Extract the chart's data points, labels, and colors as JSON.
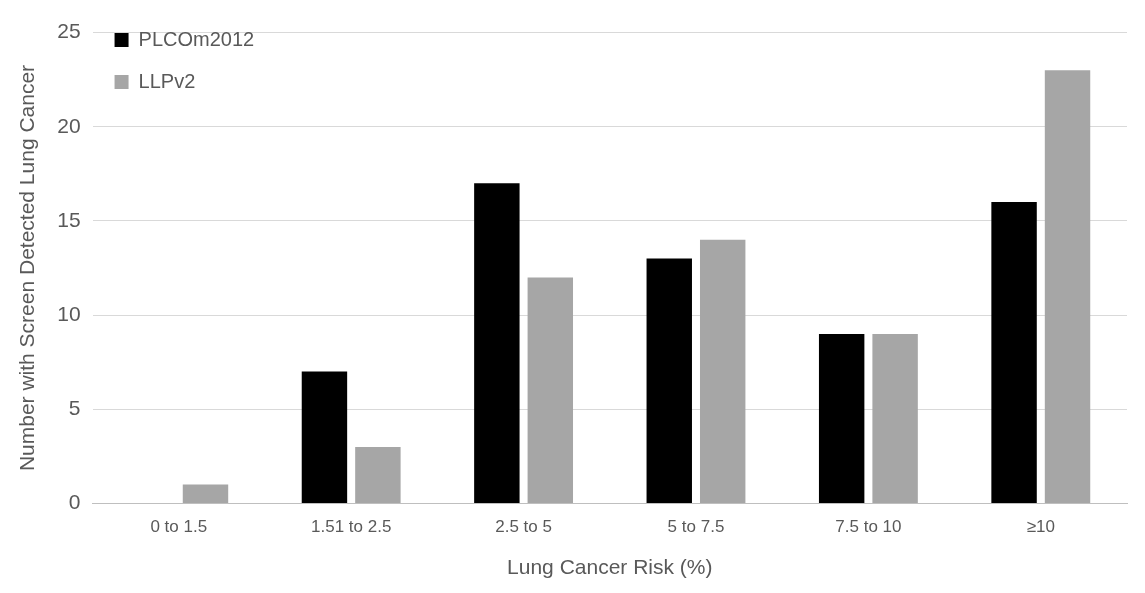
{
  "chart_data": {
    "type": "bar",
    "xlabel": "Lung Cancer Risk (%)",
    "ylabel": "Number with Screen Detected Lung Cancer",
    "categories": [
      "0 to 1.5",
      "1.51 to 2.5",
      "2.5 to 5",
      "5 to 7.5",
      "7.5 to 10",
      "≥10"
    ],
    "series": [
      {
        "name": "PLCOm2012",
        "color": "#000000",
        "values": [
          0,
          7,
          17,
          13,
          9,
          16
        ]
      },
      {
        "name": "LLPv2",
        "color": "#a6a6a6",
        "values": [
          1,
          3,
          12,
          14,
          9,
          23
        ]
      }
    ],
    "ylim": [
      0,
      25
    ],
    "yticks": [
      0,
      5,
      10,
      15,
      20,
      25
    ],
    "grid": "y",
    "legend": "top left"
  }
}
